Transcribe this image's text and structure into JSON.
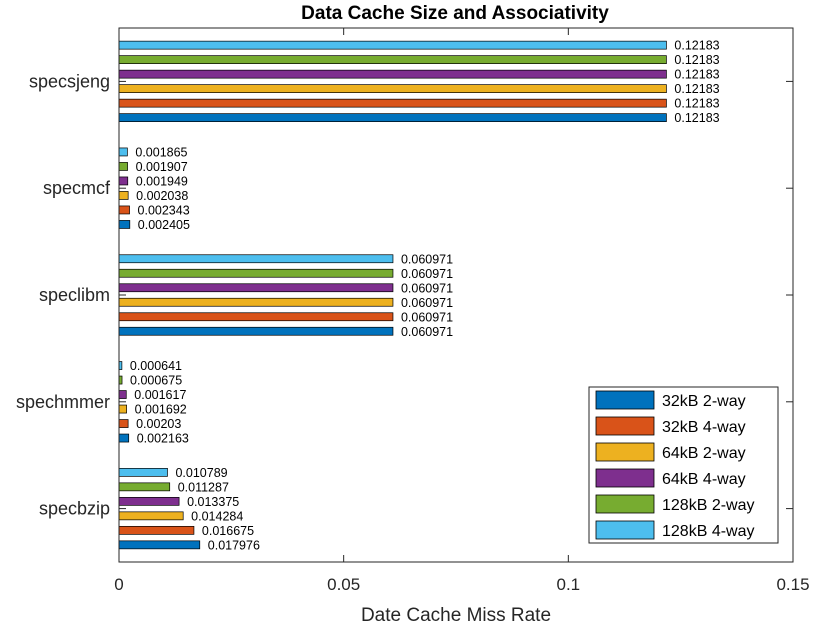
{
  "chart_data": {
    "type": "bar",
    "orientation": "horizontal",
    "title": "Data Cache Size and Associativity",
    "xlabel": "Date Cache Miss Rate",
    "ylabel": "",
    "xlim": [
      0,
      0.15
    ],
    "xticks": [
      0,
      0.05,
      0.1,
      0.15
    ],
    "xtick_labels": [
      "0",
      "0.05",
      "0.1",
      "0.15"
    ],
    "grid": false,
    "legend_position": "bottom-right",
    "categories": [
      "specbzip",
      "spechmmer",
      "speclibm",
      "specmcf",
      "specsjeng"
    ],
    "series": [
      {
        "name": "32kB 2-way",
        "color": "#0072BD",
        "values": [
          0.017976,
          0.002163,
          0.060971,
          0.002405,
          0.12183
        ],
        "labels": [
          "0.017976",
          "0.002163",
          "0.060971",
          "0.002405",
          "0.12183"
        ]
      },
      {
        "name": "32kB 4-way",
        "color": "#D95319",
        "values": [
          0.016675,
          0.00203,
          0.060971,
          0.002343,
          0.12183
        ],
        "labels": [
          "0.016675",
          "0.00203",
          "0.060971",
          "0.002343",
          "0.12183"
        ]
      },
      {
        "name": "64kB 2-way",
        "color": "#EDB120",
        "values": [
          0.014284,
          0.001692,
          0.060971,
          0.002038,
          0.12183
        ],
        "labels": [
          "0.014284",
          "0.001692",
          "0.060971",
          "0.002038",
          "0.12183"
        ]
      },
      {
        "name": "64kB 4-way",
        "color": "#7E2F8E",
        "values": [
          0.013375,
          0.001617,
          0.060971,
          0.001949,
          0.12183
        ],
        "labels": [
          "0.013375",
          "0.001617",
          "0.060971",
          "0.001949",
          "0.12183"
        ]
      },
      {
        "name": "128kB 2-way",
        "color": "#77AC30",
        "values": [
          0.011287,
          0.000675,
          0.060971,
          0.001907,
          0.12183
        ],
        "labels": [
          "0.011287",
          "0.000675",
          "0.060971",
          "0.001907",
          "0.12183"
        ]
      },
      {
        "name": "128kB 4-way",
        "color": "#4DBEEE",
        "values": [
          0.010789,
          0.000641,
          0.060971,
          0.001865,
          0.12183
        ],
        "labels": [
          "0.010789",
          "0.000641",
          "0.060971",
          "0.001865",
          "0.12183"
        ]
      }
    ]
  }
}
